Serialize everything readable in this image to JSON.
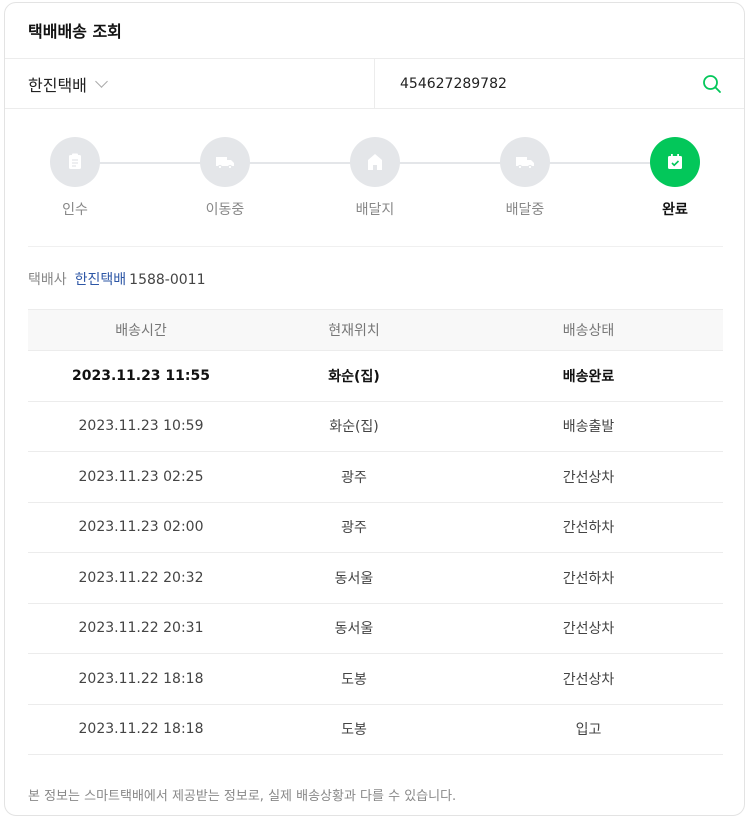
{
  "title": "택배배송 조회",
  "search": {
    "carrier": "한진택배",
    "tracking_number": "454627289782"
  },
  "steps": [
    {
      "label": "인수",
      "icon": "document-icon",
      "done": false
    },
    {
      "label": "이동중",
      "icon": "truck-icon",
      "done": false
    },
    {
      "label": "배달지",
      "icon": "house-icon",
      "done": false
    },
    {
      "label": "배달중",
      "icon": "truck-icon",
      "done": false
    },
    {
      "label": "완료",
      "icon": "calendar-check-icon",
      "done": true
    }
  ],
  "company": {
    "label": "택배사",
    "name": "한진택배",
    "phone": "1588-0011"
  },
  "table": {
    "headers": [
      "배송시간",
      "현재위치",
      "배송상태"
    ],
    "rows": [
      [
        "2023.11.23 11:55",
        "화순(집)",
        "배송완료"
      ],
      [
        "2023.11.23 10:59",
        "화순(집)",
        "배송출발"
      ],
      [
        "2023.11.23 02:25",
        "광주",
        "간선상차"
      ],
      [
        "2023.11.23 02:00",
        "광주",
        "간선하차"
      ],
      [
        "2023.11.22 20:32",
        "동서울",
        "간선하차"
      ],
      [
        "2023.11.22 20:31",
        "동서울",
        "간선상차"
      ],
      [
        "2023.11.22 18:18",
        "도봉",
        "간선상차"
      ],
      [
        "2023.11.22 18:18",
        "도봉",
        "입고"
      ]
    ]
  },
  "footer": "본 정보는 스마트택배에서 제공받는 정보로, 실제 배송상황과 다를 수 있습니다.",
  "colors": {
    "accent": "#03c75a",
    "link": "#2e57a6"
  }
}
